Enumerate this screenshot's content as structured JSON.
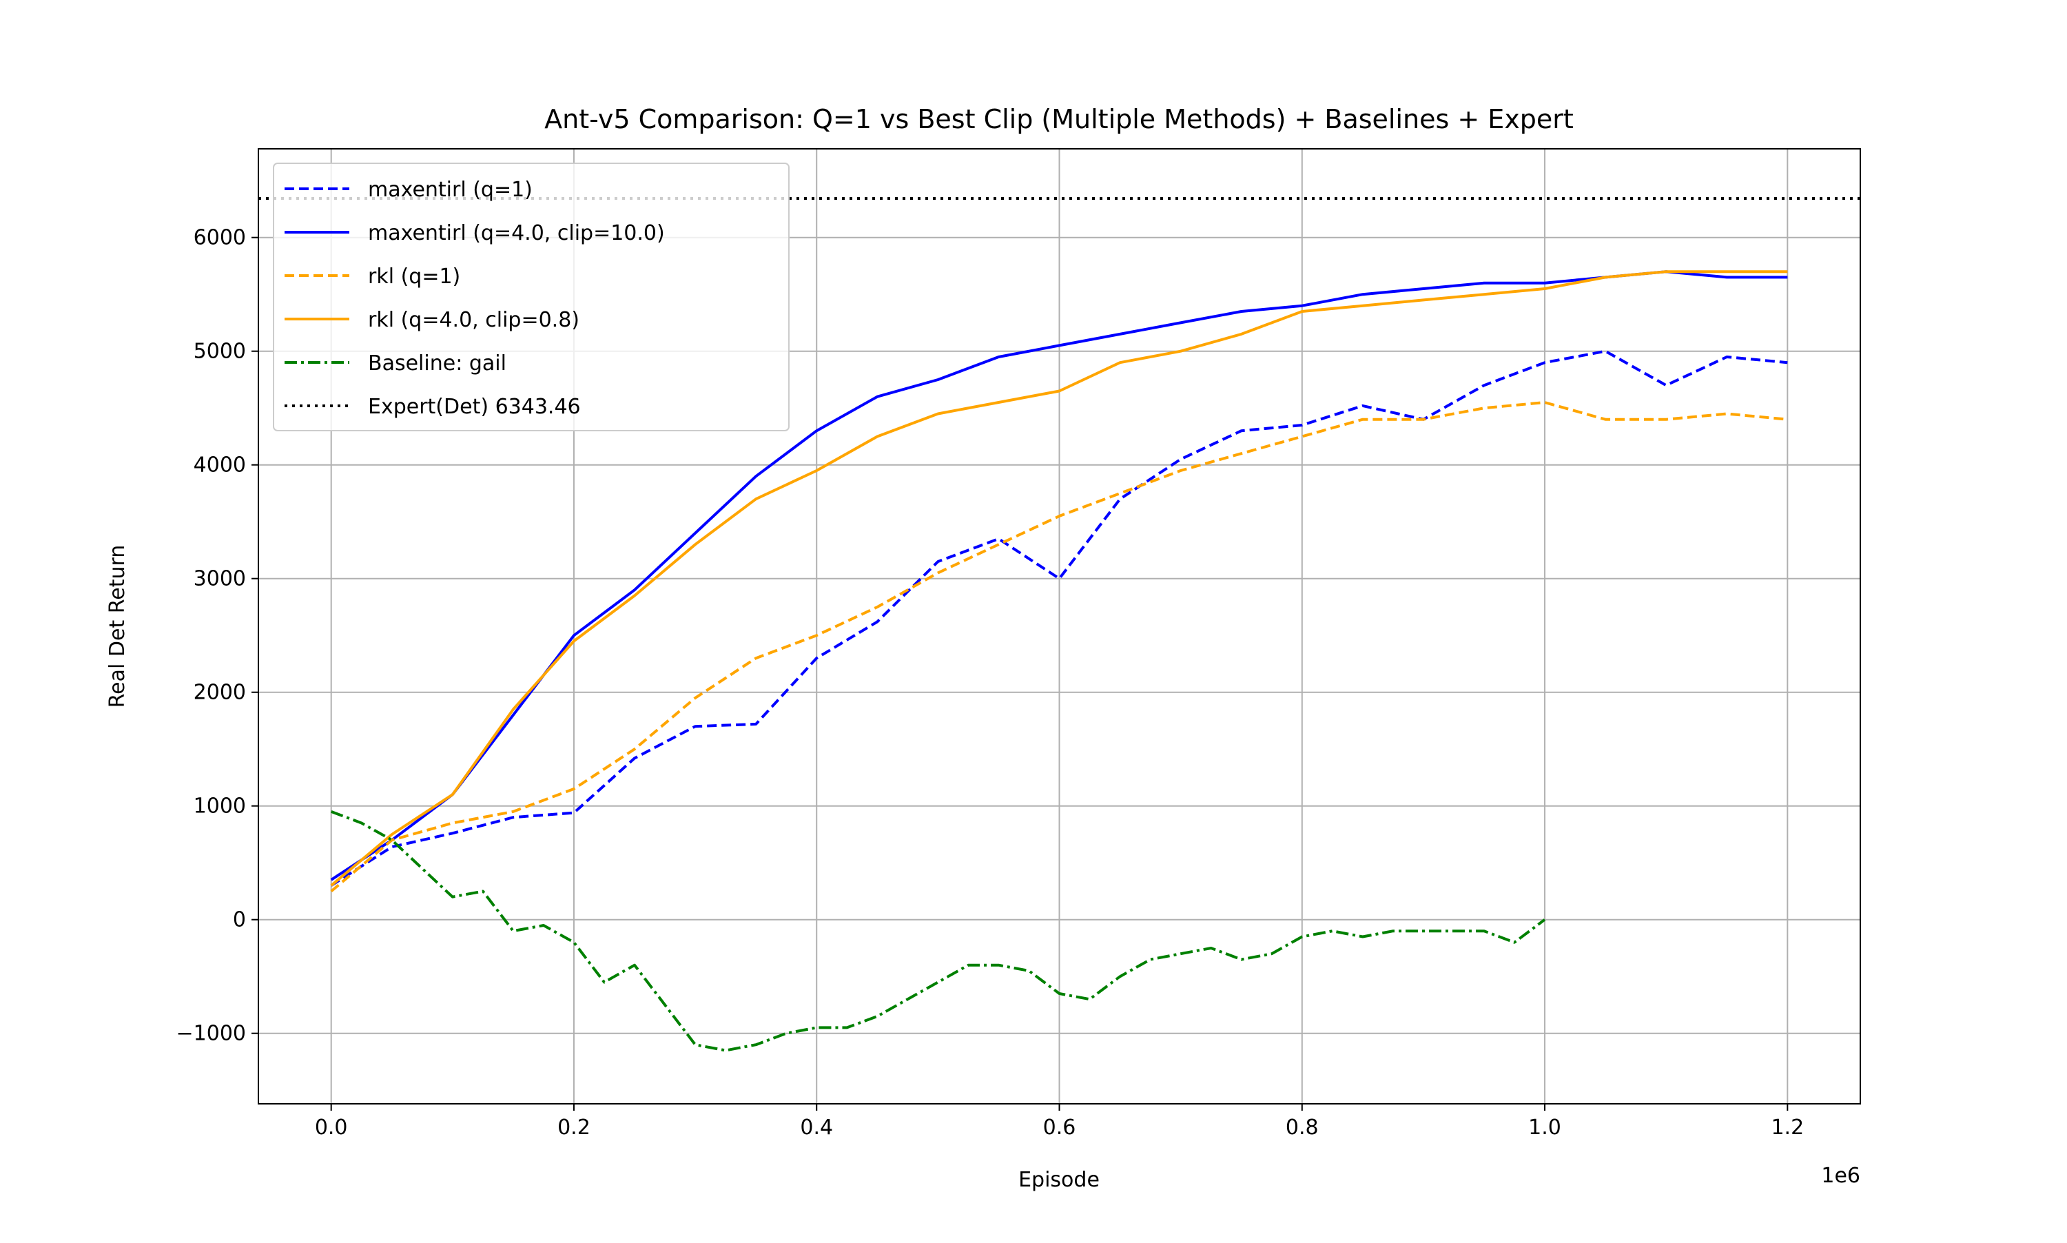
{
  "chart_data": {
    "type": "line",
    "title": "Ant-v5 Comparison: Q=1 vs Best Clip (Multiple Methods) + Baselines + Expert",
    "xlabel": "Episode",
    "ylabel": "Real Det Return",
    "x_offset_label": "1e6",
    "xlim": [
      -0.06,
      1.26
    ],
    "ylim": [
      -1620,
      6780
    ],
    "xticks": [
      0.0,
      0.2,
      0.4,
      0.6,
      0.8,
      1.0,
      1.2
    ],
    "xtick_labels": [
      "0.0",
      "0.2",
      "0.4",
      "0.6",
      "0.8",
      "1.0",
      "1.2"
    ],
    "yticks": [
      -1000,
      0,
      1000,
      2000,
      3000,
      4000,
      5000,
      6000
    ],
    "ytick_labels": [
      "−1000",
      "0",
      "1000",
      "2000",
      "3000",
      "4000",
      "5000",
      "6000"
    ],
    "grid": true,
    "legend_position": "top-left",
    "expert": {
      "name": "Expert(Det) 6343.46",
      "value": 6343.46,
      "color": "#000000"
    },
    "series": [
      {
        "name": "maxentirl (q=1)",
        "color": "#0000ff",
        "style": "dashed",
        "x": [
          0.0,
          0.05,
          0.1,
          0.15,
          0.2,
          0.25,
          0.3,
          0.35,
          0.4,
          0.45,
          0.5,
          0.55,
          0.6,
          0.65,
          0.7,
          0.75,
          0.8,
          0.85,
          0.9,
          0.95,
          1.0,
          1.05,
          1.1,
          1.15,
          1.2
        ],
        "y": [
          300,
          640,
          760,
          900,
          940,
          1420,
          1700,
          1720,
          2300,
          2620,
          3150,
          3350,
          3000,
          3700,
          4050,
          4300,
          4350,
          4520,
          4400,
          4700,
          4900,
          5000,
          4700,
          4950,
          4900
        ]
      },
      {
        "name": "maxentirl (q=4.0, clip=10.0)",
        "color": "#0000ff",
        "style": "solid",
        "x": [
          0.0,
          0.05,
          0.1,
          0.15,
          0.2,
          0.25,
          0.3,
          0.35,
          0.4,
          0.45,
          0.5,
          0.55,
          0.6,
          0.65,
          0.7,
          0.75,
          0.8,
          0.85,
          0.9,
          0.95,
          1.0,
          1.05,
          1.1,
          1.15,
          1.2
        ],
        "y": [
          350,
          700,
          1100,
          1800,
          2500,
          2900,
          3400,
          3900,
          4300,
          4600,
          4750,
          4950,
          5050,
          5150,
          5250,
          5350,
          5400,
          5500,
          5550,
          5600,
          5600,
          5650,
          5700,
          5650,
          5650
        ]
      },
      {
        "name": "rkl (q=1)",
        "color": "#ffa500",
        "style": "dashed",
        "x": [
          0.0,
          0.05,
          0.1,
          0.15,
          0.2,
          0.25,
          0.3,
          0.35,
          0.4,
          0.45,
          0.5,
          0.55,
          0.6,
          0.65,
          0.7,
          0.75,
          0.8,
          0.85,
          0.9,
          0.95,
          1.0,
          1.05,
          1.1,
          1.15,
          1.2
        ],
        "y": [
          250,
          700,
          850,
          950,
          1150,
          1500,
          1950,
          2300,
          2500,
          2750,
          3050,
          3300,
          3550,
          3750,
          3950,
          4100,
          4250,
          4400,
          4400,
          4500,
          4550,
          4400,
          4400,
          4450,
          4400
        ]
      },
      {
        "name": "rkl (q=4.0, clip=0.8)",
        "color": "#ffa500",
        "style": "solid",
        "x": [
          0.0,
          0.05,
          0.1,
          0.15,
          0.2,
          0.25,
          0.3,
          0.35,
          0.4,
          0.45,
          0.5,
          0.55,
          0.6,
          0.65,
          0.7,
          0.75,
          0.8,
          0.85,
          0.9,
          0.95,
          1.0,
          1.05,
          1.1,
          1.15,
          1.2
        ],
        "y": [
          300,
          750,
          1100,
          1850,
          2450,
          2850,
          3300,
          3700,
          3950,
          4250,
          4450,
          4550,
          4650,
          4900,
          5000,
          5150,
          5350,
          5400,
          5450,
          5500,
          5550,
          5650,
          5700,
          5700,
          5700
        ]
      },
      {
        "name": "Baseline: gail",
        "color": "#008000",
        "style": "dashdot",
        "x": [
          0.0,
          0.025,
          0.05,
          0.075,
          0.1,
          0.125,
          0.15,
          0.175,
          0.2,
          0.225,
          0.25,
          0.275,
          0.3,
          0.325,
          0.35,
          0.375,
          0.4,
          0.425,
          0.45,
          0.475,
          0.5,
          0.525,
          0.55,
          0.575,
          0.6,
          0.625,
          0.65,
          0.675,
          0.7,
          0.725,
          0.75,
          0.775,
          0.8,
          0.825,
          0.85,
          0.875,
          0.9,
          0.925,
          0.95,
          0.975,
          1.0
        ],
        "y": [
          950,
          850,
          700,
          450,
          200,
          250,
          -100,
          -50,
          -200,
          -550,
          -400,
          -750,
          -1100,
          -1150,
          -1100,
          -1000,
          -950,
          -950,
          -850,
          -700,
          -550,
          -400,
          -400,
          -450,
          -650,
          -700,
          -500,
          -350,
          -300,
          -250,
          -350,
          -300,
          -150,
          -100,
          -150,
          -100,
          -100,
          -100,
          -100,
          -200,
          0
        ]
      }
    ]
  }
}
